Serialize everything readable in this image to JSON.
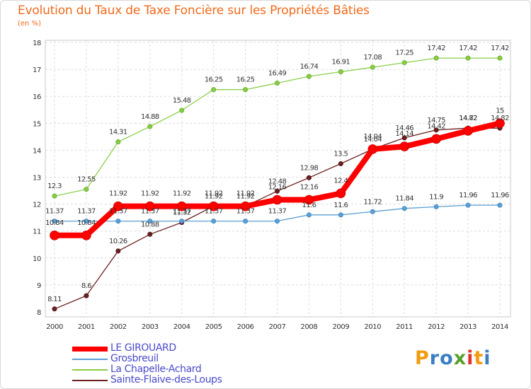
{
  "chart_data": {
    "type": "line",
    "title": "Evolution du Taux de Taxe Foncière sur les Propriétés Bâties",
    "unit_label": "(en %)",
    "xlabel": "",
    "ylabel": "",
    "x": [
      "2000",
      "2001",
      "2002",
      "2003",
      "2004",
      "2005",
      "2006",
      "2007",
      "2008",
      "2009",
      "2010",
      "2011",
      "2012",
      "2013",
      "2014"
    ],
    "ylim": [
      8,
      18
    ],
    "yticks": [
      8,
      9,
      10,
      11,
      12,
      13,
      14,
      15,
      16,
      17,
      18
    ],
    "grid": true,
    "legend_position": "bottom-left",
    "series": [
      {
        "name": "LE GIROUARD",
        "color": "#ff0000",
        "values": [
          10.84,
          10.84,
          11.92,
          11.92,
          11.92,
          11.92,
          11.92,
          12.16,
          12.16,
          12.4,
          14.04,
          14.14,
          14.42,
          14.72,
          15
        ],
        "labels": [
          "10.84",
          "10.84",
          "11.92",
          "11.92",
          "11.92",
          "11.92",
          "11.92",
          "12.16",
          "12.16",
          "12.4",
          "14.04",
          "14.14",
          "14.42",
          "14.72",
          "15"
        ]
      },
      {
        "name": "Grosbreuil",
        "color": "#5a9fd4",
        "values": [
          11.37,
          11.37,
          11.37,
          11.37,
          11.37,
          11.37,
          11.37,
          11.37,
          11.6,
          11.6,
          11.72,
          11.84,
          11.9,
          11.96,
          11.96
        ],
        "labels": [
          "11.37",
          "11.37",
          "11.37",
          "11.37",
          "11.37",
          "11.37",
          "11.37",
          "11.37",
          "11.6",
          "11.6",
          "11.72",
          "11.84",
          "11.9",
          "11.96",
          "11.96"
        ]
      },
      {
        "name": "La Chapelle-Achard",
        "color": "#88cc44",
        "values": [
          12.3,
          12.55,
          14.31,
          14.88,
          15.48,
          16.25,
          16.25,
          16.49,
          16.74,
          16.91,
          17.08,
          17.25,
          17.42,
          17.42,
          17.42
        ],
        "labels": [
          "12.3",
          "12.55",
          "14.31",
          "14.88",
          "15.48",
          "16.25",
          "16.25",
          "16.49",
          "16.74",
          "16.91",
          "17.08",
          "17.25",
          "17.42",
          "17.42",
          "17.42"
        ]
      },
      {
        "name": "Sainte-Flaive-des-Loups",
        "color": "#6b1f1f",
        "values": [
          8.11,
          8.6,
          10.26,
          10.88,
          11.32,
          11.92,
          11.92,
          12.48,
          12.98,
          13.5,
          14.04,
          14.46,
          14.75,
          14.82,
          14.82
        ],
        "labels": [
          "8.11",
          "8.6",
          "10.26",
          "10.88",
          "11.32",
          "11.92",
          "11.92",
          "12.48",
          "12.98",
          "13.5",
          "14.04",
          "14.46",
          "14.75",
          "14.82",
          "14.82"
        ]
      }
    ]
  },
  "brand": {
    "name": "Proxiti",
    "letters": [
      "P",
      "r",
      "o",
      "x",
      "i",
      "t",
      "i"
    ],
    "colors": [
      "#f39c12",
      "#3a7fc4",
      "#3a7fc4",
      "#5aa02c",
      "#e0322b",
      "#f39c12",
      "#3a7fc4"
    ]
  }
}
